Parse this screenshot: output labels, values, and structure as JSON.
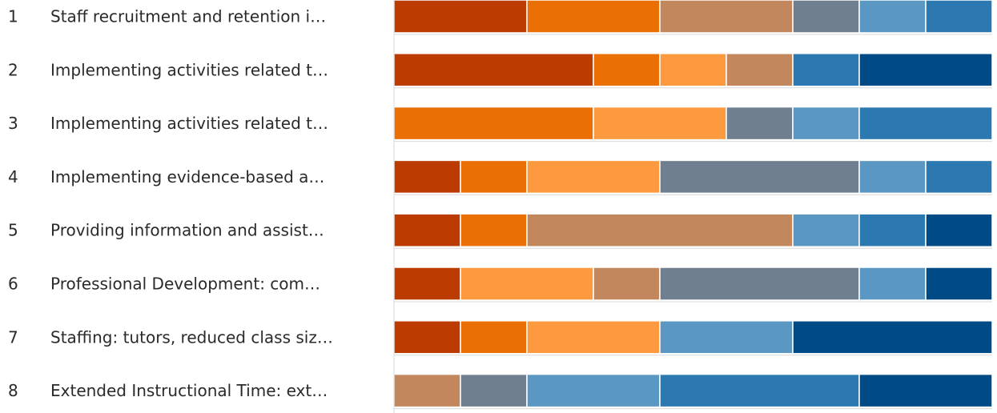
{
  "colors": {
    "1": "#bb3b00",
    "2": "#ea6f05",
    "3": "#fd9a3f",
    "4": "#c2875c",
    "5": "#6f7f8f",
    "6": "#5a97c2",
    "7": "#2b79b0",
    "8": "#004a85"
  },
  "chart_data": {
    "type": "bar",
    "stacked": true,
    "orientation": "horizontal",
    "ranks": [
      "1",
      "2",
      "3",
      "4",
      "5",
      "6",
      "7",
      "8"
    ],
    "categories": [
      "Staff recruitment and retention i…",
      "Implementing activities related t…",
      "Implementing activities related t…",
      "Implementing evidence-based a…",
      "Providing information and assist…",
      "Professional Development: com…",
      "Staffing: tutors, reduced class siz…",
      "Extended Instructional Time: ext…"
    ],
    "rows": [
      [
        {
          "color": "1",
          "value": 2
        },
        {
          "color": "2",
          "value": 2
        },
        {
          "color": "4",
          "value": 2
        },
        {
          "color": "5",
          "value": 1
        },
        {
          "color": "6",
          "value": 1
        },
        {
          "color": "7",
          "value": 1
        }
      ],
      [
        {
          "color": "1",
          "value": 3
        },
        {
          "color": "2",
          "value": 1
        },
        {
          "color": "3",
          "value": 1
        },
        {
          "color": "4",
          "value": 1
        },
        {
          "color": "7",
          "value": 1
        },
        {
          "color": "8",
          "value": 2
        }
      ],
      [
        {
          "color": "2",
          "value": 3
        },
        {
          "color": "3",
          "value": 2
        },
        {
          "color": "5",
          "value": 1
        },
        {
          "color": "6",
          "value": 1
        },
        {
          "color": "7",
          "value": 2
        }
      ],
      [
        {
          "color": "1",
          "value": 1
        },
        {
          "color": "2",
          "value": 1
        },
        {
          "color": "3",
          "value": 2
        },
        {
          "color": "5",
          "value": 3
        },
        {
          "color": "6",
          "value": 1
        },
        {
          "color": "7",
          "value": 1
        }
      ],
      [
        {
          "color": "1",
          "value": 1
        },
        {
          "color": "2",
          "value": 1
        },
        {
          "color": "4",
          "value": 4
        },
        {
          "color": "6",
          "value": 1
        },
        {
          "color": "7",
          "value": 1
        },
        {
          "color": "8",
          "value": 1
        }
      ],
      [
        {
          "color": "1",
          "value": 1
        },
        {
          "color": "3",
          "value": 2
        },
        {
          "color": "4",
          "value": 1
        },
        {
          "color": "5",
          "value": 3
        },
        {
          "color": "6",
          "value": 1
        },
        {
          "color": "8",
          "value": 1
        }
      ],
      [
        {
          "color": "1",
          "value": 1
        },
        {
          "color": "2",
          "value": 1
        },
        {
          "color": "3",
          "value": 2
        },
        {
          "color": "6",
          "value": 2
        },
        {
          "color": "8",
          "value": 3
        }
      ],
      [
        {
          "color": "4",
          "value": 1
        },
        {
          "color": "5",
          "value": 1
        },
        {
          "color": "6",
          "value": 2
        },
        {
          "color": "7",
          "value": 3
        },
        {
          "color": "8",
          "value": 2
        }
      ]
    ],
    "xlim": [
      0,
      9
    ]
  }
}
